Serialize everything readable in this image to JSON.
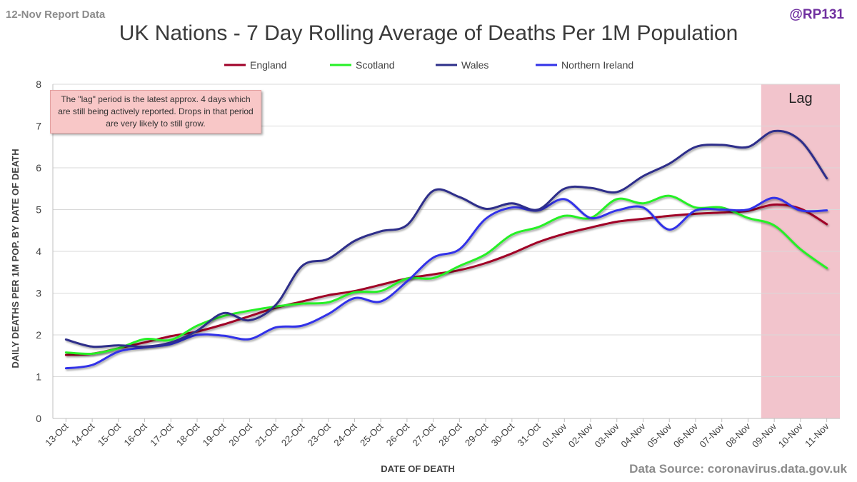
{
  "header": {
    "report_label": "12-Nov Report Data",
    "handle": "@RP131",
    "source": "Data Source: coronavirus.data.gov.uk"
  },
  "annotation": {
    "note": "The \"lag\" period is the latest approx. 4 days which are still being actively reported. Drops in that period are very likely to still grow.",
    "lag_label": "Lag",
    "lag_start": "08-Nov",
    "lag_color": "#f2c4cc"
  },
  "chart_data": {
    "type": "line",
    "title": "UK Nations - 7 Day Rolling Average of Deaths Per 1M Population",
    "xlabel": "DATE OF DEATH",
    "ylabel": "DAILY DEATHS PER 1M POP. BY DATE OF DEATH",
    "ylim": [
      0,
      8
    ],
    "yticks": [
      0,
      1,
      2,
      3,
      4,
      5,
      6,
      7,
      8
    ],
    "grid": true,
    "legend_position": "top",
    "x": [
      "13-Oct",
      "14-Oct",
      "15-Oct",
      "16-Oct",
      "17-Oct",
      "18-Oct",
      "19-Oct",
      "20-Oct",
      "21-Oct",
      "22-Oct",
      "23-Oct",
      "24-Oct",
      "25-Oct",
      "26-Oct",
      "27-Oct",
      "28-Oct",
      "29-Oct",
      "30-Oct",
      "31-Oct",
      "01-Nov",
      "02-Nov",
      "03-Nov",
      "04-Nov",
      "05-Nov",
      "06-Nov",
      "07-Nov",
      "08-Nov",
      "09-Nov",
      "10-Nov",
      "11-Nov"
    ],
    "series": [
      {
        "name": "England",
        "color": "#a00028",
        "values": [
          1.52,
          1.55,
          1.68,
          1.82,
          1.97,
          2.08,
          2.25,
          2.45,
          2.65,
          2.8,
          2.95,
          3.05,
          3.2,
          3.35,
          3.45,
          3.55,
          3.72,
          3.95,
          4.22,
          4.42,
          4.57,
          4.71,
          4.78,
          4.85,
          4.9,
          4.93,
          4.97,
          5.12,
          5.02,
          4.65
        ]
      },
      {
        "name": "Scotland",
        "color": "#26f026",
        "values": [
          1.58,
          1.55,
          1.68,
          1.9,
          1.88,
          2.22,
          2.45,
          2.58,
          2.68,
          2.75,
          2.78,
          3.02,
          3.05,
          3.35,
          3.36,
          3.65,
          3.93,
          4.4,
          4.58,
          4.85,
          4.8,
          5.25,
          5.15,
          5.33,
          5.05,
          5.05,
          4.8,
          4.62,
          4.05,
          3.6
        ]
      },
      {
        "name": "Wales",
        "color": "#2d2f8a",
        "values": [
          1.89,
          1.72,
          1.75,
          1.72,
          1.82,
          2.1,
          2.52,
          2.35,
          2.72,
          3.65,
          3.82,
          4.25,
          4.48,
          4.63,
          5.45,
          5.3,
          5.02,
          5.15,
          5.0,
          5.5,
          5.52,
          5.42,
          5.8,
          6.1,
          6.5,
          6.55,
          6.5,
          6.88,
          6.65,
          5.75
        ]
      },
      {
        "name": "Northern Ireland",
        "color": "#3232e8",
        "values": [
          1.2,
          1.28,
          1.6,
          1.7,
          1.78,
          2.0,
          1.98,
          1.9,
          2.18,
          2.22,
          2.5,
          2.88,
          2.8,
          3.28,
          3.85,
          4.05,
          4.78,
          5.05,
          4.98,
          5.25,
          4.8,
          4.98,
          5.05,
          4.52,
          4.98,
          5.0,
          5.0,
          5.28,
          4.98,
          4.98
        ]
      }
    ]
  }
}
